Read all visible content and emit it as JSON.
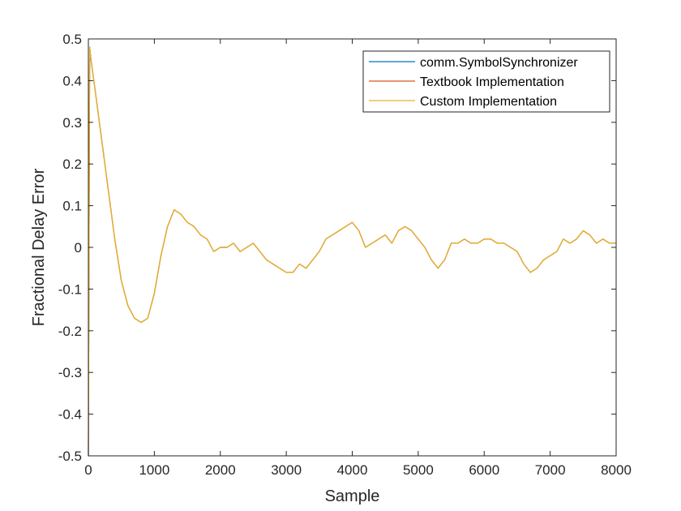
{
  "chart_data": {
    "type": "line",
    "title": "",
    "xlabel": "Sample",
    "ylabel": "Fractional Delay Error",
    "xlim": [
      0,
      8000
    ],
    "ylim": [
      -0.5,
      0.5
    ],
    "xticks": [
      0,
      1000,
      2000,
      3000,
      4000,
      5000,
      6000,
      7000,
      8000
    ],
    "xtick_labels": [
      "0",
      "1000",
      "2000",
      "3000",
      "4000",
      "5000",
      "6000",
      "7000",
      "8000"
    ],
    "yticks": [
      -0.5,
      -0.4,
      -0.3,
      -0.2,
      -0.1,
      0,
      0.1,
      0.2,
      0.3,
      0.4,
      0.5
    ],
    "ytick_labels": [
      "-0.5",
      "-0.4",
      "-0.3",
      "-0.2",
      "-0.1",
      "0",
      "0.1",
      "0.2",
      "0.3",
      "0.4",
      "0.5"
    ],
    "grid": false,
    "legend_position": "top-right",
    "series": [
      {
        "name": "comm.SymbolSynchronizer",
        "color": "#0072BD",
        "x": [
          0,
          20,
          40,
          100,
          200,
          300,
          400,
          500,
          600,
          700,
          800,
          900,
          1000,
          1100,
          1200,
          1300,
          1400,
          1500,
          1600,
          1700,
          1800,
          1900,
          2000,
          2100,
          2200,
          2300,
          2400,
          2500,
          2600,
          2700,
          2800,
          2900,
          3000,
          3100,
          3200,
          3300,
          3400,
          3500,
          3600,
          3700,
          3800,
          3900,
          4000,
          4100,
          4200,
          4300,
          4400,
          4500,
          4600,
          4700,
          4800,
          4900,
          5000,
          5100,
          5200,
          5300,
          5400,
          5500,
          5600,
          5700,
          5800,
          5900,
          6000,
          6100,
          6200,
          6300,
          6400,
          6500,
          6600,
          6700,
          6800,
          6900,
          7000,
          7100,
          7200,
          7300,
          7400,
          7500,
          7600,
          7700,
          7800,
          7900,
          8000
        ],
        "values": [
          -0.5,
          0.48,
          0.45,
          0.38,
          0.26,
          0.14,
          0.02,
          -0.08,
          -0.14,
          -0.17,
          -0.18,
          -0.17,
          -0.11,
          -0.02,
          0.05,
          0.09,
          0.08,
          0.06,
          0.05,
          0.03,
          0.02,
          -0.01,
          0.0,
          0.0,
          0.01,
          -0.01,
          0.0,
          0.01,
          -0.01,
          -0.03,
          -0.04,
          -0.05,
          -0.06,
          -0.06,
          -0.04,
          -0.05,
          -0.03,
          -0.01,
          0.02,
          0.03,
          0.04,
          0.05,
          0.06,
          0.04,
          0.0,
          0.01,
          0.02,
          0.03,
          0.01,
          0.04,
          0.05,
          0.04,
          0.02,
          0.0,
          -0.03,
          -0.05,
          -0.03,
          0.01,
          0.01,
          0.02,
          0.01,
          0.01,
          0.02,
          0.02,
          0.01,
          0.01,
          0.0,
          -0.01,
          -0.04,
          -0.06,
          -0.05,
          -0.03,
          -0.02,
          -0.01,
          0.02,
          0.01,
          0.02,
          0.04,
          0.03,
          0.01,
          0.02,
          0.01,
          0.01
        ]
      },
      {
        "name": "Textbook Implementation",
        "color": "#D95319",
        "x": [
          0,
          20,
          40,
          100,
          200,
          300,
          400,
          500,
          600,
          700,
          800,
          900,
          1000,
          1100,
          1200,
          1300,
          1400,
          1500,
          1600,
          1700,
          1800,
          1900,
          2000,
          2100,
          2200,
          2300,
          2400,
          2500,
          2600,
          2700,
          2800,
          2900,
          3000,
          3100,
          3200,
          3300,
          3400,
          3500,
          3600,
          3700,
          3800,
          3900,
          4000,
          4100,
          4200,
          4300,
          4400,
          4500,
          4600,
          4700,
          4800,
          4900,
          5000,
          5100,
          5200,
          5300,
          5400,
          5500,
          5600,
          5700,
          5800,
          5900,
          6000,
          6100,
          6200,
          6300,
          6400,
          6500,
          6600,
          6700,
          6800,
          6900,
          7000,
          7100,
          7200,
          7300,
          7400,
          7500,
          7600,
          7700,
          7800,
          7900,
          8000
        ],
        "values": [
          -0.5,
          0.48,
          0.45,
          0.38,
          0.26,
          0.14,
          0.02,
          -0.08,
          -0.14,
          -0.17,
          -0.18,
          -0.17,
          -0.11,
          -0.02,
          0.05,
          0.09,
          0.08,
          0.06,
          0.05,
          0.03,
          0.02,
          -0.01,
          0.0,
          0.0,
          0.01,
          -0.01,
          0.0,
          0.01,
          -0.01,
          -0.03,
          -0.04,
          -0.05,
          -0.06,
          -0.06,
          -0.04,
          -0.05,
          -0.03,
          -0.01,
          0.02,
          0.03,
          0.04,
          0.05,
          0.06,
          0.04,
          0.0,
          0.01,
          0.02,
          0.03,
          0.01,
          0.04,
          0.05,
          0.04,
          0.02,
          0.0,
          -0.03,
          -0.05,
          -0.03,
          0.01,
          0.01,
          0.02,
          0.01,
          0.01,
          0.02,
          0.02,
          0.01,
          0.01,
          0.0,
          -0.01,
          -0.04,
          -0.06,
          -0.05,
          -0.03,
          -0.02,
          -0.01,
          0.02,
          0.01,
          0.02,
          0.04,
          0.03,
          0.01,
          0.02,
          0.01,
          0.01
        ]
      },
      {
        "name": "Custom Implementation",
        "color": "#EDB120",
        "x": [
          0,
          20,
          40,
          100,
          200,
          300,
          400,
          500,
          600,
          700,
          800,
          900,
          1000,
          1100,
          1200,
          1300,
          1400,
          1500,
          1600,
          1700,
          1800,
          1900,
          2000,
          2100,
          2200,
          2300,
          2400,
          2500,
          2600,
          2700,
          2800,
          2900,
          3000,
          3100,
          3200,
          3300,
          3400,
          3500,
          3600,
          3700,
          3800,
          3900,
          4000,
          4100,
          4200,
          4300,
          4400,
          4500,
          4600,
          4700,
          4800,
          4900,
          5000,
          5100,
          5200,
          5300,
          5400,
          5500,
          5600,
          5700,
          5800,
          5900,
          6000,
          6100,
          6200,
          6300,
          6400,
          6500,
          6600,
          6700,
          6800,
          6900,
          7000,
          7100,
          7200,
          7300,
          7400,
          7500,
          7600,
          7700,
          7800,
          7900,
          8000
        ],
        "values": [
          -0.5,
          0.48,
          0.45,
          0.38,
          0.26,
          0.14,
          0.02,
          -0.08,
          -0.14,
          -0.17,
          -0.18,
          -0.17,
          -0.11,
          -0.02,
          0.05,
          0.09,
          0.08,
          0.06,
          0.05,
          0.03,
          0.02,
          -0.01,
          0.0,
          0.0,
          0.01,
          -0.01,
          0.0,
          0.01,
          -0.01,
          -0.03,
          -0.04,
          -0.05,
          -0.06,
          -0.06,
          -0.04,
          -0.05,
          -0.03,
          -0.01,
          0.02,
          0.03,
          0.04,
          0.05,
          0.06,
          0.04,
          0.0,
          0.01,
          0.02,
          0.03,
          0.01,
          0.04,
          0.05,
          0.04,
          0.02,
          0.0,
          -0.03,
          -0.05,
          -0.03,
          0.01,
          0.01,
          0.02,
          0.01,
          0.01,
          0.02,
          0.02,
          0.01,
          0.01,
          0.0,
          -0.01,
          -0.04,
          -0.06,
          -0.05,
          -0.03,
          -0.02,
          -0.01,
          0.02,
          0.01,
          0.02,
          0.04,
          0.03,
          0.01,
          0.02,
          0.01,
          0.01
        ]
      }
    ]
  }
}
